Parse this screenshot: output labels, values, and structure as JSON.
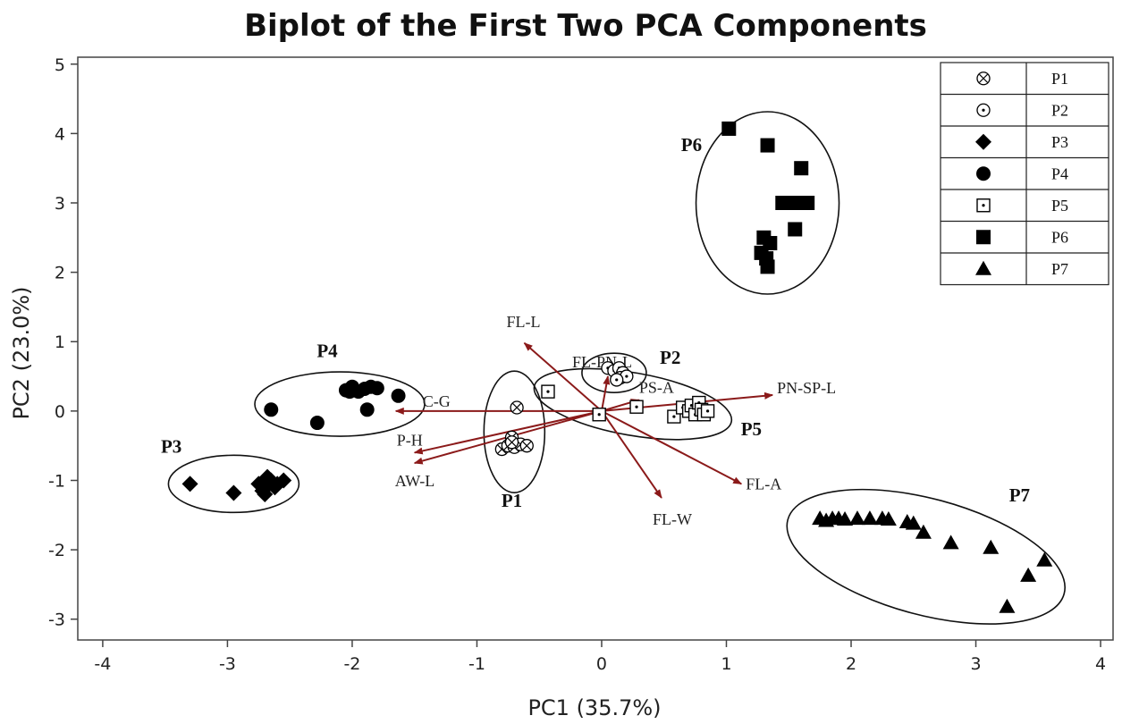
{
  "chart_data": {
    "type": "scatter",
    "title": "Biplot of  the First Two PCA Components",
    "xlabel": "PC1 (35.7%)",
    "ylabel": "PC2 (23.0%)",
    "xlim": [
      -4.2,
      4.1
    ],
    "ylim": [
      -3.3,
      5.1
    ],
    "xticks": [
      -4,
      -3,
      -2,
      -1,
      0,
      1,
      2,
      3,
      4
    ],
    "yticks": [
      -3,
      -2,
      -1,
      0,
      1,
      2,
      3,
      4,
      5
    ],
    "legend_position": "top-right",
    "series": [
      {
        "name": "P1",
        "marker": "circle-x",
        "points": [
          [
            -0.68,
            0.05
          ],
          [
            -0.72,
            -0.38
          ],
          [
            -0.8,
            -0.55
          ],
          [
            -0.75,
            -0.5
          ],
          [
            -0.7,
            -0.52
          ],
          [
            -0.65,
            -0.48
          ],
          [
            -0.6,
            -0.5
          ],
          [
            -0.72,
            -0.45
          ]
        ]
      },
      {
        "name": "P2",
        "marker": "circle-dot",
        "points": [
          [
            0.05,
            0.62
          ],
          [
            0.1,
            0.58
          ],
          [
            0.14,
            0.62
          ],
          [
            0.17,
            0.55
          ],
          [
            0.15,
            0.48
          ],
          [
            0.2,
            0.5
          ],
          [
            0.12,
            0.45
          ]
        ]
      },
      {
        "name": "P3",
        "marker": "diamond",
        "points": [
          [
            -3.3,
            -1.05
          ],
          [
            -2.95,
            -1.18
          ],
          [
            -2.75,
            -1.05
          ],
          [
            -2.7,
            -1.12
          ],
          [
            -2.65,
            -1.0
          ],
          [
            -2.6,
            -1.05
          ],
          [
            -2.68,
            -0.95
          ],
          [
            -2.72,
            -1.15
          ],
          [
            -2.62,
            -1.1
          ],
          [
            -2.55,
            -1.0
          ],
          [
            -2.7,
            -1.2
          ]
        ]
      },
      {
        "name": "P4",
        "marker": "circle",
        "points": [
          [
            -2.65,
            0.02
          ],
          [
            -2.28,
            -0.17
          ],
          [
            -2.05,
            0.3
          ],
          [
            -2.0,
            0.35
          ],
          [
            -1.95,
            0.28
          ],
          [
            -1.9,
            0.32
          ],
          [
            -1.85,
            0.35
          ],
          [
            -1.8,
            0.33
          ],
          [
            -1.88,
            0.02
          ],
          [
            -1.63,
            0.22
          ],
          [
            -2.02,
            0.28
          ]
        ]
      },
      {
        "name": "P5",
        "marker": "square-dot",
        "points": [
          [
            -0.43,
            0.28
          ],
          [
            -0.02,
            -0.05
          ],
          [
            0.28,
            0.06
          ],
          [
            0.58,
            -0.08
          ],
          [
            0.65,
            0.05
          ],
          [
            0.7,
            0.0
          ],
          [
            0.72,
            0.08
          ],
          [
            0.75,
            -0.05
          ],
          [
            0.78,
            0.12
          ],
          [
            0.8,
            0.02
          ],
          [
            0.82,
            -0.05
          ],
          [
            0.85,
            0.0
          ]
        ]
      },
      {
        "name": "P6",
        "marker": "square",
        "points": [
          [
            1.02,
            4.07
          ],
          [
            1.33,
            3.83
          ],
          [
            1.6,
            3.5
          ],
          [
            1.45,
            3.0
          ],
          [
            1.55,
            3.0
          ],
          [
            1.65,
            3.0
          ],
          [
            1.55,
            2.62
          ],
          [
            1.3,
            2.5
          ],
          [
            1.35,
            2.42
          ],
          [
            1.28,
            2.28
          ],
          [
            1.32,
            2.2
          ],
          [
            1.33,
            2.08
          ]
        ]
      },
      {
        "name": "P7",
        "marker": "triangle",
        "points": [
          [
            1.75,
            -1.55
          ],
          [
            1.8,
            -1.58
          ],
          [
            1.85,
            -1.55
          ],
          [
            1.9,
            -1.55
          ],
          [
            1.95,
            -1.56
          ],
          [
            2.05,
            -1.55
          ],
          [
            2.15,
            -1.55
          ],
          [
            2.25,
            -1.55
          ],
          [
            2.3,
            -1.56
          ],
          [
            2.45,
            -1.6
          ],
          [
            2.5,
            -1.62
          ],
          [
            2.58,
            -1.75
          ],
          [
            2.8,
            -1.9
          ],
          [
            3.12,
            -1.97
          ],
          [
            3.55,
            -2.15
          ],
          [
            3.42,
            -2.37
          ],
          [
            3.25,
            -2.82
          ]
        ]
      }
    ],
    "loadings": [
      {
        "label": "FL-L",
        "x": -0.62,
        "y": 0.98
      },
      {
        "label": "FL-PN-L",
        "x": 0.05,
        "y": 0.5
      },
      {
        "label": "PS-A",
        "x": 0.3,
        "y": 0.16
      },
      {
        "label": "PN-SP-L",
        "x": 1.37,
        "y": 0.23
      },
      {
        "label": "C-G",
        "x": -1.65,
        "y": 0.0
      },
      {
        "label": "P-H",
        "x": -1.5,
        "y": -0.6
      },
      {
        "label": "AW-L",
        "x": -1.5,
        "y": -0.75
      },
      {
        "label": "FL-W",
        "x": 0.48,
        "y": -1.25
      },
      {
        "label": "FL-A",
        "x": 1.12,
        "y": -1.05
      }
    ],
    "groups": [
      {
        "label": "P1"
      },
      {
        "label": "P2"
      },
      {
        "label": "P3"
      },
      {
        "label": "P4"
      },
      {
        "label": "P5"
      },
      {
        "label": "P6"
      },
      {
        "label": "P7"
      }
    ]
  },
  "colors": {
    "vector": "#8b1a1a",
    "marker": "#000000",
    "axis": "#444444"
  }
}
